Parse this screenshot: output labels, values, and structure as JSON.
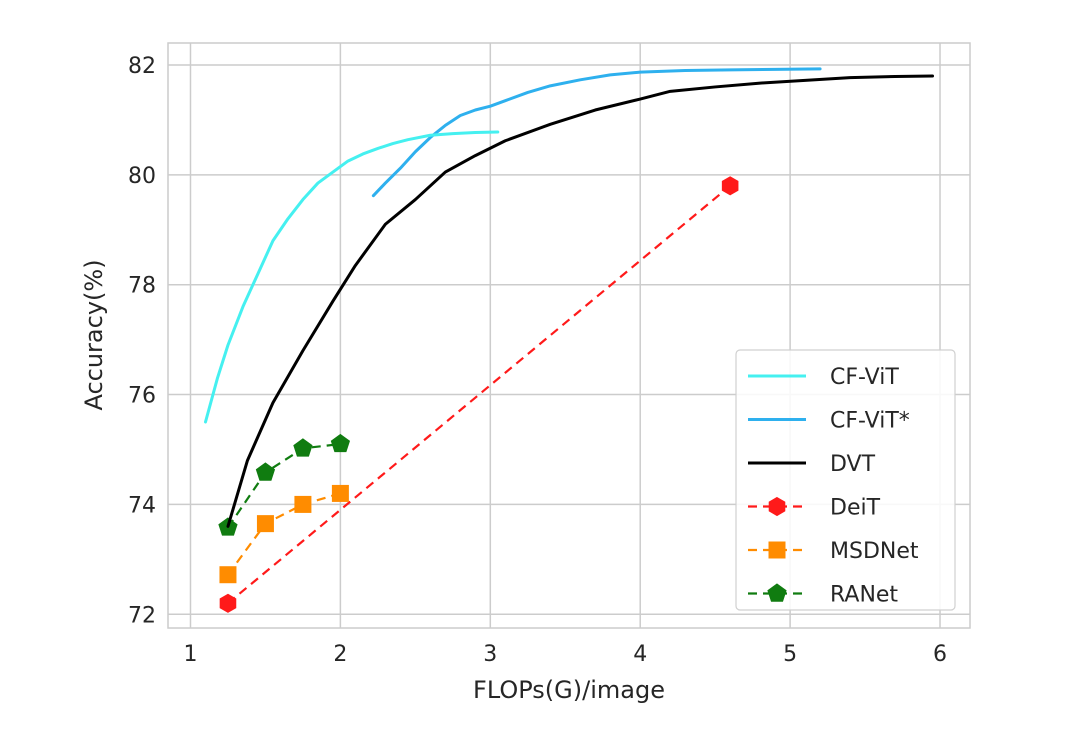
{
  "chart_data": {
    "type": "line",
    "title": "",
    "xlabel": "FLOPs(G)/image",
    "ylabel": "Accuracy(%)",
    "xlim": [
      0.85,
      6.2
    ],
    "ylim": [
      71.75,
      82.4
    ],
    "xticks": [
      1,
      2,
      3,
      4,
      5,
      6
    ],
    "yticks": [
      72,
      74,
      76,
      78,
      80,
      82
    ],
    "grid": true,
    "legend_position": "bottom-right",
    "series": [
      {
        "name": "CF-ViT",
        "color": "#45f0f0",
        "style": "solid",
        "marker": "none",
        "points": [
          [
            1.1,
            75.5
          ],
          [
            1.18,
            76.3
          ],
          [
            1.25,
            76.9
          ],
          [
            1.35,
            77.6
          ],
          [
            1.45,
            78.2
          ],
          [
            1.55,
            78.8
          ],
          [
            1.65,
            79.2
          ],
          [
            1.75,
            79.55
          ],
          [
            1.85,
            79.85
          ],
          [
            1.95,
            80.05
          ],
          [
            2.05,
            80.25
          ],
          [
            2.15,
            80.38
          ],
          [
            2.25,
            80.48
          ],
          [
            2.35,
            80.57
          ],
          [
            2.45,
            80.64
          ],
          [
            2.6,
            80.72
          ],
          [
            2.75,
            80.75
          ],
          [
            2.9,
            80.77
          ],
          [
            3.05,
            80.78
          ]
        ]
      },
      {
        "name": "CF-ViT*",
        "color": "#2eb0ee",
        "style": "solid",
        "marker": "none",
        "points": [
          [
            2.22,
            79.62
          ],
          [
            2.3,
            79.85
          ],
          [
            2.4,
            80.12
          ],
          [
            2.5,
            80.42
          ],
          [
            2.6,
            80.68
          ],
          [
            2.7,
            80.9
          ],
          [
            2.8,
            81.08
          ],
          [
            2.9,
            81.18
          ],
          [
            3.0,
            81.25
          ],
          [
            3.1,
            81.35
          ],
          [
            3.25,
            81.5
          ],
          [
            3.4,
            81.62
          ],
          [
            3.6,
            81.73
          ],
          [
            3.8,
            81.82
          ],
          [
            4.0,
            81.87
          ],
          [
            4.3,
            81.9
          ],
          [
            4.6,
            81.91
          ],
          [
            4.9,
            81.92
          ],
          [
            5.2,
            81.93
          ]
        ]
      },
      {
        "name": "DVT",
        "color": "#000000",
        "style": "solid",
        "marker": "none",
        "points": [
          [
            1.25,
            73.6
          ],
          [
            1.38,
            74.8
          ],
          [
            1.55,
            75.85
          ],
          [
            1.75,
            76.8
          ],
          [
            1.95,
            77.7
          ],
          [
            2.1,
            78.35
          ],
          [
            2.3,
            79.1
          ],
          [
            2.5,
            79.55
          ],
          [
            2.7,
            80.05
          ],
          [
            2.9,
            80.35
          ],
          [
            3.1,
            80.62
          ],
          [
            3.4,
            80.92
          ],
          [
            3.7,
            81.18
          ],
          [
            4.0,
            81.38
          ],
          [
            4.2,
            81.52
          ],
          [
            4.5,
            81.6
          ],
          [
            4.8,
            81.67
          ],
          [
            5.1,
            81.72
          ],
          [
            5.4,
            81.77
          ],
          [
            5.7,
            81.79
          ],
          [
            5.95,
            81.8
          ]
        ]
      },
      {
        "name": "DeiT",
        "color": "#ff1a1a",
        "style": "dashed",
        "marker": "hexagon",
        "points": [
          [
            1.25,
            72.2
          ],
          [
            4.6,
            79.8
          ]
        ]
      },
      {
        "name": "MSDNet",
        "color": "#ff8c00",
        "style": "dashed",
        "marker": "square",
        "points": [
          [
            1.25,
            72.72
          ],
          [
            1.5,
            73.65
          ],
          [
            1.75,
            74.0
          ],
          [
            2.0,
            74.2
          ]
        ]
      },
      {
        "name": "RANet",
        "color": "#107c10",
        "style": "dashed",
        "marker": "pentagon",
        "points": [
          [
            1.25,
            73.58
          ],
          [
            1.5,
            74.58
          ],
          [
            1.75,
            75.02
          ],
          [
            2.0,
            75.1
          ]
        ]
      }
    ]
  }
}
